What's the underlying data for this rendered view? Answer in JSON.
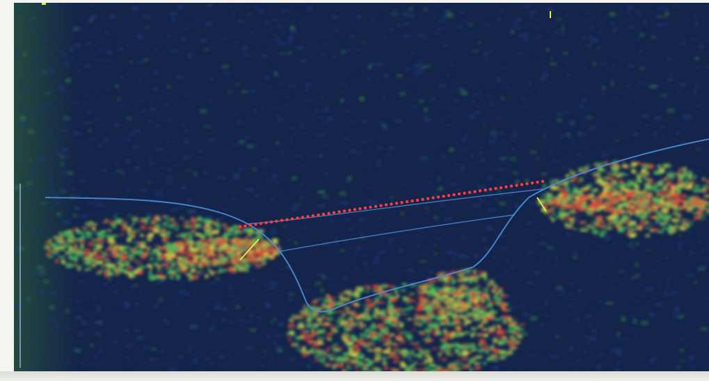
{
  "scan": {
    "kind": "OCT cross-section",
    "palette": {
      "background": "#14244a",
      "noise_blue": "#1e3a78",
      "noise_green": "#2f7a4a",
      "tissue_green": "#4fbf5a",
      "tissue_yellow": "#d8d84a",
      "tissue_red": "#e0503a",
      "boundary": "#4a8fd8",
      "measure_dots": "#ff3a3a",
      "marker": "#e8e84a"
    }
  },
  "icons": [
    "top-tick-marker-icon",
    "left-scale-bar-icon",
    "caliper-marker-icon"
  ]
}
